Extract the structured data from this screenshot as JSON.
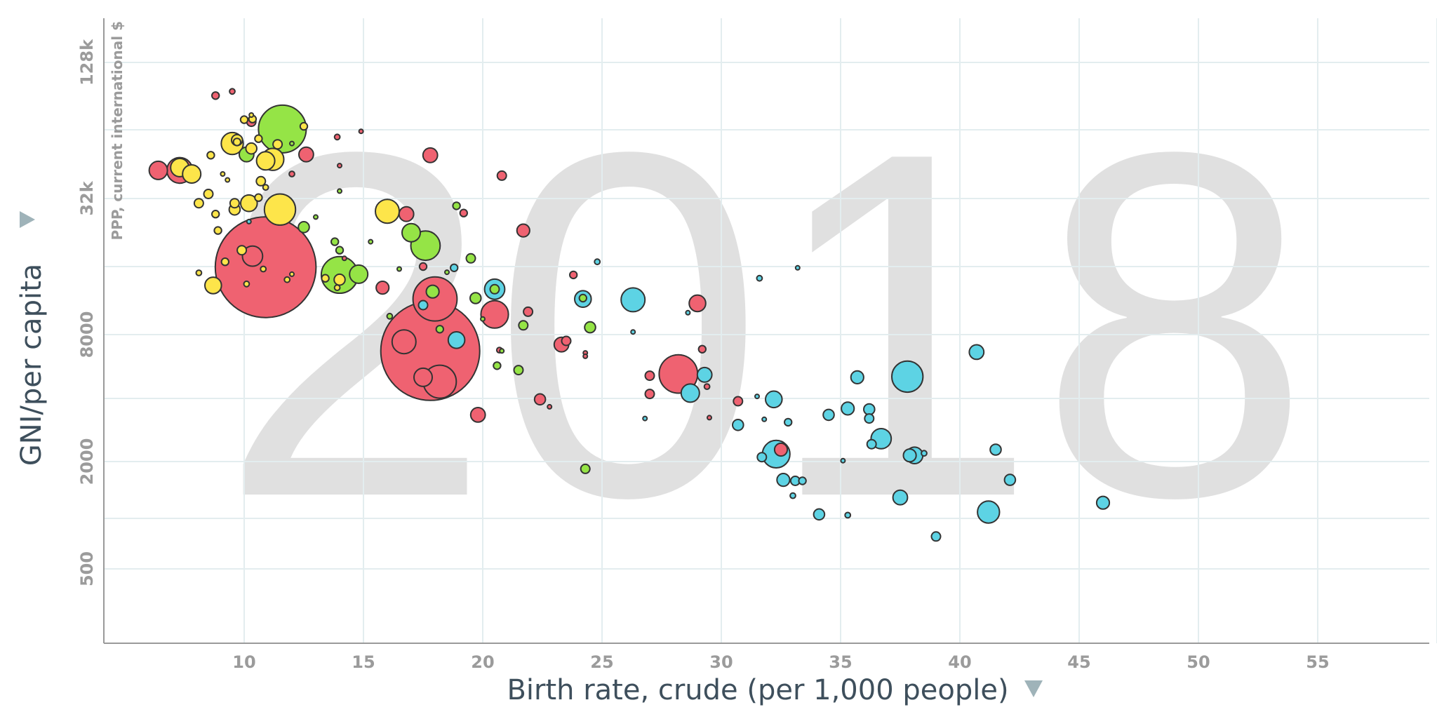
{
  "chart_data": {
    "type": "scatter",
    "year_label": "2018",
    "xlabel": "Birth rate, crude (per 1,000 people)",
    "ylabel": "GNI/per capita",
    "ylabel_sub": "PPP, current international $",
    "axis_menu_icon": "triangle-down-icon",
    "x_scale": "linear",
    "y_scale": "log",
    "xlim": [
      4,
      60
    ],
    "ylim": [
      250,
      180000
    ],
    "x_ticks": [
      10,
      15,
      20,
      25,
      30,
      35,
      40,
      45,
      50,
      55
    ],
    "x_tick_labels": [
      "10",
      "15",
      "20",
      "25",
      "30",
      "35",
      "40",
      "45",
      "50",
      "55"
    ],
    "y_grid": [
      128000,
      64000,
      32000,
      16000,
      8000,
      4000,
      2000,
      1000,
      500
    ],
    "y_ticks": [
      128000,
      32000,
      8000,
      2000,
      500
    ],
    "y_tick_labels": [
      "128k",
      "32k",
      "8000",
      "2000",
      "500"
    ],
    "grid": true,
    "size_encoding": "population (millions)",
    "palette": [
      "#ef6271",
      "#fde54a",
      "#95e446",
      "#5dd3e4"
    ],
    "point_fields": [
      "x",
      "y",
      "size",
      "color_index"
    ],
    "points": [
      [
        8.8,
        91000,
        7.4,
        0
      ],
      [
        9.5,
        95000,
        4.2,
        0
      ],
      [
        6.4,
        42500,
        46,
        0
      ],
      [
        7.3,
        42500,
        91,
        0
      ],
      [
        7.3,
        43700,
        46,
        1
      ],
      [
        7.8,
        41000,
        46,
        1
      ],
      [
        8.6,
        49500,
        7.4,
        1
      ],
      [
        9.5,
        55700,
        67,
        1
      ],
      [
        9.7,
        57700,
        16.7,
        1
      ],
      [
        9.7,
        56600,
        7.4,
        1
      ],
      [
        10.1,
        49900,
        29.6,
        2
      ],
      [
        10.3,
        53000,
        16.7,
        1
      ],
      [
        10.0,
        71000,
        7.4,
        1
      ],
      [
        10.3,
        69500,
        11.6,
        0
      ],
      [
        10.35,
        71500,
        7.4,
        1
      ],
      [
        10.3,
        74500,
        1.9,
        1
      ],
      [
        11.6,
        64500,
        313,
        2
      ],
      [
        12.5,
        66300,
        7.4,
        1
      ],
      [
        12.0,
        55700,
        1.9,
        2
      ],
      [
        11.4,
        55300,
        11.6,
        1
      ],
      [
        10.9,
        46800,
        46,
        1
      ],
      [
        11.2,
        47500,
        67,
        1
      ],
      [
        10.6,
        58500,
        7.4,
        1
      ],
      [
        12.6,
        49900,
        29.6,
        0
      ],
      [
        12.0,
        41000,
        4.2,
        0
      ],
      [
        9.1,
        41000,
        1.9,
        1
      ],
      [
        9.3,
        38600,
        1.9,
        1
      ],
      [
        8.5,
        33500,
        11.6,
        1
      ],
      [
        8.1,
        30500,
        11.6,
        1
      ],
      [
        10.7,
        38100,
        11.6,
        1
      ],
      [
        10.9,
        35800,
        4.2,
        1
      ],
      [
        9.6,
        30500,
        11.6,
        1
      ],
      [
        9.6,
        28600,
        16.7,
        1
      ],
      [
        10.2,
        30500,
        37.5,
        1
      ],
      [
        10.6,
        32300,
        7.4,
        1
      ],
      [
        8.8,
        27300,
        7.4,
        1
      ],
      [
        11.5,
        28600,
        134,
        1
      ],
      [
        8.9,
        23100,
        7.4,
        1
      ],
      [
        10.2,
        25300,
        1.9,
        3
      ],
      [
        12.5,
        23900,
        16.7,
        2
      ],
      [
        13.0,
        26500,
        1.9,
        2
      ],
      [
        8.1,
        15000,
        4.2,
        1
      ],
      [
        8.7,
        13200,
        37.5,
        1
      ],
      [
        10.9,
        15900,
        1400,
        0
      ],
      [
        10.35,
        17800,
        56,
        0
      ],
      [
        9.9,
        18900,
        11.6,
        1
      ],
      [
        9.2,
        16800,
        7.4,
        1
      ],
      [
        10.1,
        13400,
        4.2,
        1
      ],
      [
        10.8,
        15600,
        4.2,
        1
      ],
      [
        11.8,
        14000,
        4.2,
        1
      ],
      [
        12.0,
        14800,
        1.9,
        1
      ],
      [
        14.0,
        14700,
        185,
        2
      ],
      [
        13.4,
        14200,
        7.4,
        1
      ],
      [
        14.0,
        14000,
        16.7,
        1
      ],
      [
        13.9,
        12900,
        4.2,
        1
      ],
      [
        14.8,
        14800,
        46,
        2
      ],
      [
        13.8,
        20600,
        7.4,
        2
      ],
      [
        14.0,
        18900,
        7.4,
        2
      ],
      [
        13.9,
        59500,
        4.2,
        0
      ],
      [
        14.9,
        63000,
        1.9,
        0
      ],
      [
        14.0,
        44600,
        1.9,
        0
      ],
      [
        14.0,
        34500,
        1.9,
        2
      ],
      [
        15.3,
        20600,
        1.9,
        2
      ],
      [
        14.2,
        17400,
        1.9,
        0
      ],
      [
        16.0,
        28100,
        78,
        1
      ],
      [
        16.8,
        27300,
        29.6,
        0
      ],
      [
        17.0,
        22600,
        46,
        2
      ],
      [
        17.6,
        19800,
        118,
        2
      ],
      [
        17.8,
        49500,
        29.6,
        0
      ],
      [
        15.8,
        12900,
        22.7,
        0
      ],
      [
        16.5,
        15600,
        1.9,
        2
      ],
      [
        16.1,
        9650,
        4.2,
        2
      ],
      [
        18.0,
        11500,
        267,
        0
      ],
      [
        17.9,
        12400,
        22.7,
        2
      ],
      [
        17.5,
        10800,
        11.6,
        3
      ],
      [
        17.5,
        16000,
        7.4,
        0
      ],
      [
        17.8,
        6700,
        1350,
        0
      ],
      [
        16.7,
        7400,
        78,
        0
      ],
      [
        17.5,
        5030,
        46,
        0
      ],
      [
        18.2,
        4800,
        150,
        0
      ],
      [
        18.2,
        8450,
        7.4,
        2
      ],
      [
        18.9,
        7540,
        37.5,
        3
      ],
      [
        18.5,
        15100,
        1.9,
        2
      ],
      [
        18.8,
        15800,
        7.4,
        3
      ],
      [
        18.9,
        29700,
        7.4,
        2
      ],
      [
        19.2,
        27600,
        7.4,
        0
      ],
      [
        19.5,
        17400,
        11.6,
        2
      ],
      [
        19.7,
        11600,
        16.7,
        2
      ],
      [
        20.5,
        12700,
        56,
        3
      ],
      [
        20.5,
        12700,
        11.6,
        2
      ],
      [
        20.5,
        9830,
        104,
        0
      ],
      [
        20.8,
        40300,
        11.6,
        0
      ],
      [
        21.7,
        23100,
        22.7,
        0
      ],
      [
        20.0,
        9380,
        1.9,
        2
      ],
      [
        20.7,
        6760,
        4.2,
        0
      ],
      [
        20.8,
        6700,
        1.9,
        2
      ],
      [
        20.6,
        5710,
        7.4,
        2
      ],
      [
        21.5,
        5440,
        11.6,
        2
      ],
      [
        21.7,
        8790,
        11.6,
        2
      ],
      [
        21.9,
        10100,
        11.6,
        0
      ],
      [
        19.8,
        3340,
        29.6,
        0
      ],
      [
        22.4,
        3960,
        16.7,
        0
      ],
      [
        22.8,
        3650,
        1.9,
        0
      ],
      [
        23.3,
        7180,
        29.6,
        0
      ],
      [
        23.5,
        7470,
        11.6,
        0
      ],
      [
        24.3,
        1830,
        11.6,
        2
      ],
      [
        23.8,
        14700,
        7.4,
        0
      ],
      [
        24.2,
        11500,
        37.5,
        3
      ],
      [
        24.2,
        11600,
        7.4,
        2
      ],
      [
        24.5,
        8620,
        16.7,
        2
      ],
      [
        24.8,
        16800,
        4.2,
        3
      ],
      [
        24.3,
        6560,
        1.9,
        0
      ],
      [
        24.3,
        6320,
        1.9,
        0
      ],
      [
        26.3,
        11400,
        78,
        3
      ],
      [
        26.3,
        8220,
        1.9,
        3
      ],
      [
        27.0,
        5120,
        11.6,
        0
      ],
      [
        27.0,
        4200,
        11.6,
        0
      ],
      [
        26.8,
        3210,
        1.9,
        3
      ],
      [
        28.2,
        5220,
        204,
        0
      ],
      [
        28.7,
        4240,
        46,
        3
      ],
      [
        29.3,
        5170,
        29.6,
        3
      ],
      [
        29.2,
        6830,
        7.4,
        0
      ],
      [
        29.4,
        4550,
        4.2,
        0
      ],
      [
        28.6,
        10000,
        1.9,
        3
      ],
      [
        29.0,
        11000,
        37.5,
        0
      ],
      [
        29.5,
        3240,
        1.9,
        0
      ],
      [
        30.7,
        3880,
        11.6,
        0
      ],
      [
        30.7,
        2990,
        16.7,
        3
      ],
      [
        31.6,
        14200,
        4.2,
        3
      ],
      [
        33.2,
        15800,
        1.9,
        3
      ],
      [
        31.5,
        4090,
        1.9,
        3
      ],
      [
        32.2,
        3960,
        37.5,
        3
      ],
      [
        31.8,
        3180,
        1.9,
        3
      ],
      [
        32.8,
        3080,
        7.4,
        3
      ],
      [
        32.3,
        2170,
        104,
        3
      ],
      [
        32.5,
        2280,
        22.7,
        0
      ],
      [
        31.7,
        2100,
        11.6,
        3
      ],
      [
        32.6,
        1600,
        22.7,
        3
      ],
      [
        33.1,
        1580,
        11.6,
        3
      ],
      [
        33.4,
        1580,
        7.4,
        3
      ],
      [
        33.0,
        1320,
        4.2,
        3
      ],
      [
        34.1,
        1050,
        16.7,
        3
      ],
      [
        34.5,
        3340,
        16.7,
        3
      ],
      [
        35.3,
        3580,
        22.7,
        3
      ],
      [
        35.7,
        5030,
        22.7,
        3
      ],
      [
        36.2,
        3550,
        16.7,
        3
      ],
      [
        36.2,
        3210,
        11.6,
        3
      ],
      [
        36.3,
        2420,
        11.6,
        3
      ],
      [
        36.7,
        2570,
        56,
        3
      ],
      [
        35.1,
        2020,
        1.9,
        3
      ],
      [
        35.3,
        1040,
        4.2,
        3
      ],
      [
        37.8,
        5070,
        134,
        3
      ],
      [
        37.9,
        2140,
        22.7,
        3
      ],
      [
        38.1,
        2140,
        37.5,
        3
      ],
      [
        38.5,
        2190,
        4.2,
        3
      ],
      [
        37.5,
        1290,
        29.6,
        3
      ],
      [
        39.0,
        780,
        11.6,
        3
      ],
      [
        40.7,
        6620,
        29.6,
        3
      ],
      [
        41.5,
        2280,
        16.7,
        3
      ],
      [
        41.2,
        1080,
        67,
        3
      ],
      [
        42.1,
        1600,
        16.7,
        3
      ],
      [
        46.0,
        1210,
        22.7,
        3
      ]
    ]
  }
}
